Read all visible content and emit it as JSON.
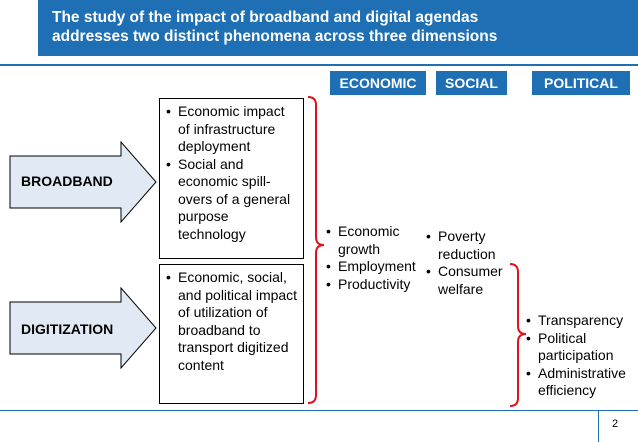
{
  "title": {
    "line1": "The study of the impact of broadband and digital agendas",
    "line2": "addresses two distinct phenomena across three dimensions"
  },
  "dimensions": {
    "economic": "ECONOMIC",
    "social": "SOCIAL",
    "political": "POLITICAL"
  },
  "phenomena": {
    "broadband": "BROADBAND",
    "digitization": "DIGITIZATION"
  },
  "broadband_box": {
    "items": [
      "Economic impact of infrastructure deployment",
      "Social and economic spill-overs of a general purpose technology"
    ]
  },
  "digitization_box": {
    "items": [
      "Economic, social, and political impact of utilization of broadband to transport digitized content"
    ]
  },
  "economic_effects": [
    "Economic growth",
    "Employment",
    "Productivity"
  ],
  "social_effects": [
    "Poverty reduction",
    "Consumer welfare"
  ],
  "political_effects": [
    "Transparency",
    "Political participation",
    "Administrative efficiency"
  ],
  "page_number": "2",
  "colors": {
    "brand_blue": "#1f6fb5",
    "arrow_fill": "#e1eaf4",
    "brace_red": "#e0121c"
  }
}
